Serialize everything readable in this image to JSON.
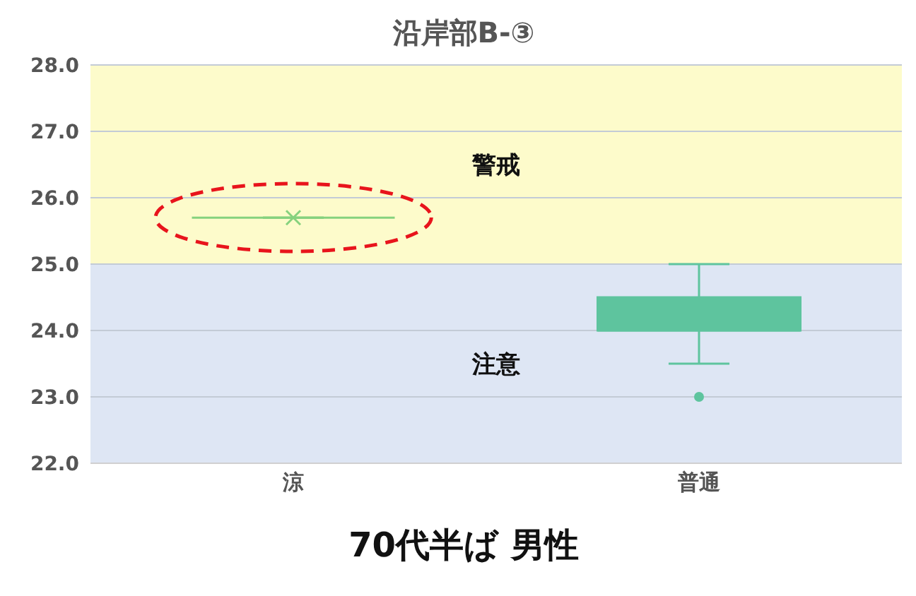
{
  "chart_data": {
    "type": "box",
    "title": "沿岸部B-③",
    "categories": [
      "涼",
      "普通"
    ],
    "boxes": [
      {
        "low": 25.7,
        "q1": 25.7,
        "median": 25.7,
        "q3": 25.7,
        "high": 25.7,
        "mean": 25.7
      },
      {
        "low": 23.5,
        "q1": 24.0,
        "median": 24.0,
        "q3": 24.5,
        "high": 25.0,
        "outliers": [
          23.0
        ]
      }
    ],
    "colors": [
      "#86d27e",
      "#5ec49e"
    ],
    "ylim": [
      22,
      28
    ],
    "yticks": [
      {
        "value": 22,
        "label": "22.0"
      },
      {
        "value": 23,
        "label": "23.0"
      },
      {
        "value": 24,
        "label": "24.0"
      },
      {
        "value": 25,
        "label": "25.0"
      },
      {
        "value": 26,
        "label": "26.0"
      },
      {
        "value": 27,
        "label": "27.0"
      },
      {
        "value": 28,
        "label": "28.0"
      }
    ],
    "bands": [
      {
        "axis": "y",
        "from": 25,
        "to": 28,
        "label": "警戒",
        "color": "#fdfbcb"
      },
      {
        "axis": "y",
        "from": 22,
        "to": 25,
        "label": "注意",
        "color": "#dee6f4"
      }
    ],
    "grid": "y",
    "annotations": [
      "70代半ば 男性"
    ]
  }
}
